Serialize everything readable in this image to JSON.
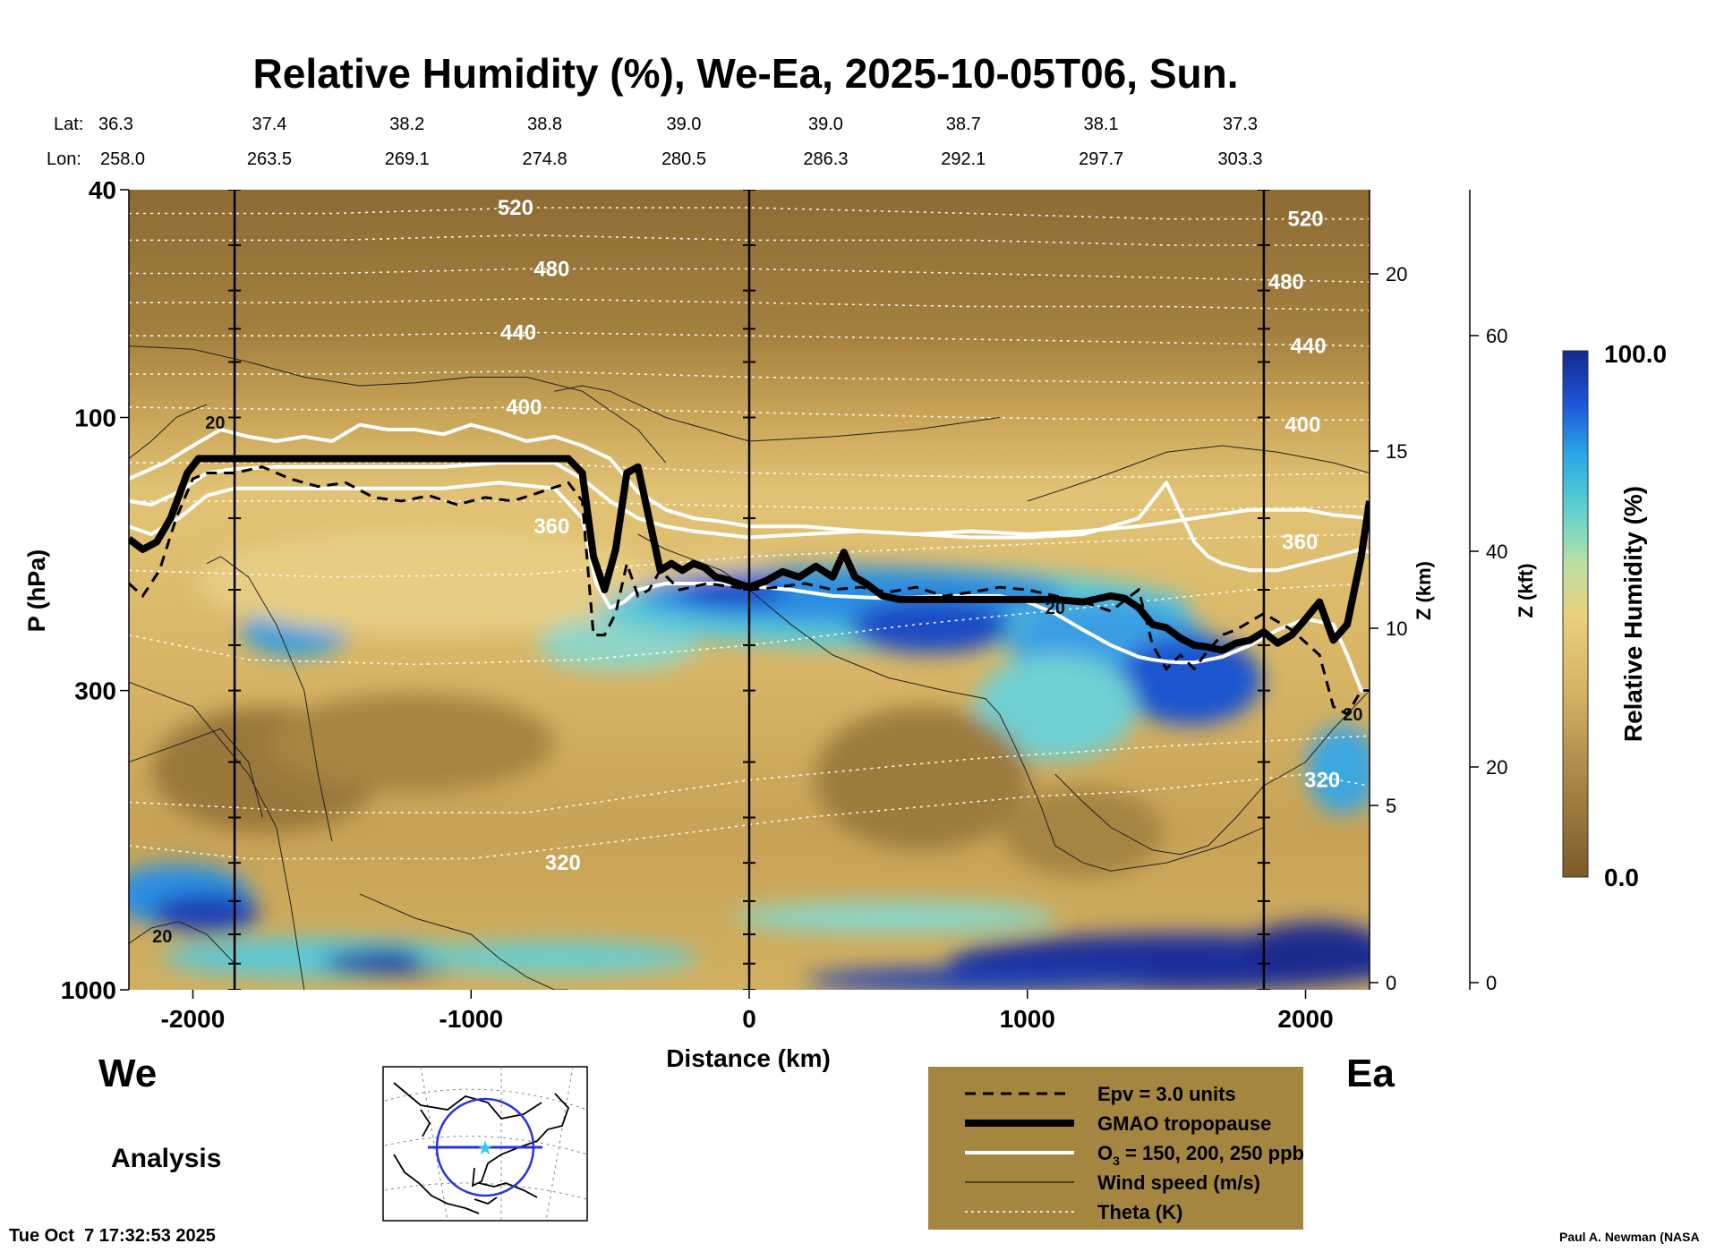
{
  "chart_data": {
    "type": "heatmap",
    "title": "Relative Humidity (%), We-Ea, 2025-10-05T06, Sun.",
    "xlabel": "Distance (km)",
    "ylabel": "P (hPa)",
    "y2label": "Z (km)",
    "y3label": "Z (kft)",
    "colorbar_label": "Relative Humidity (%)",
    "colorbar_max_label": "100.0",
    "colorbar_min_label": "0.0",
    "colorbar_range": [
      0,
      100
    ],
    "colors": {
      "dry": "#8a6a30",
      "mid_dry": "#c9a657",
      "neutral": "#e8c87a",
      "moist": "#8fd6c9",
      "wet": "#2b9be0",
      "saturated": "#1a2b9c",
      "legend_bg": "#a58641"
    },
    "xlim": [
      -2230,
      2230
    ],
    "ylim_hpa": [
      1000,
      40
    ],
    "x_ticks": [
      {
        "value": -2000,
        "label": "-2000"
      },
      {
        "value": -1000,
        "label": "-1000"
      },
      {
        "value": 0,
        "label": "0"
      },
      {
        "value": 1000,
        "label": "1000"
      },
      {
        "value": 2000,
        "label": "2000"
      }
    ],
    "p_ticks": [
      {
        "value": 40,
        "label": "40"
      },
      {
        "value": 100,
        "label": "100"
      },
      {
        "value": 300,
        "label": "300"
      },
      {
        "value": 1000,
        "label": "1000"
      }
    ],
    "z_km_ticks": [
      {
        "value": 20,
        "label": "20"
      },
      {
        "value": 15,
        "label": "15"
      },
      {
        "value": 10,
        "label": "10"
      },
      {
        "value": 5,
        "label": "5"
      },
      {
        "value": 0,
        "label": "0"
      }
    ],
    "z_kft_ticks": [
      {
        "value": 60,
        "label": "60"
      },
      {
        "value": 40,
        "label": "40"
      },
      {
        "value": 20,
        "label": "20"
      },
      {
        "value": 0,
        "label": "0"
      }
    ],
    "lat_label": "Lat:",
    "lon_label": "Lon:",
    "latlon": [
      {
        "x": -2230,
        "lat": "36.3",
        "lon": "258.0"
      },
      {
        "x": -1725,
        "lat": "37.4",
        "lon": "263.5"
      },
      {
        "x": -1230,
        "lat": "38.2",
        "lon": "269.1"
      },
      {
        "x": -735,
        "lat": "38.8",
        "lon": "274.8"
      },
      {
        "x": -235,
        "lat": "39.0",
        "lon": "280.5"
      },
      {
        "x": 275,
        "lat": "39.0",
        "lon": "286.3"
      },
      {
        "x": 770,
        "lat": "38.7",
        "lon": "292.1"
      },
      {
        "x": 1265,
        "lat": "38.1",
        "lon": "297.7"
      },
      {
        "x": 1765,
        "lat": "37.3",
        "lon": "303.3"
      }
    ],
    "vertical_markers_km": [
      -1850,
      0,
      1850
    ],
    "theta_labels": [
      {
        "text": "520",
        "x": -840,
        "p": 43
      },
      {
        "text": "480",
        "x": -710,
        "p": 55
      },
      {
        "text": "440",
        "x": -830,
        "p": 71
      },
      {
        "text": "400",
        "x": -810,
        "p": 96
      },
      {
        "text": "360",
        "x": -710,
        "p": 155
      },
      {
        "text": "320",
        "x": -670,
        "p": 600
      },
      {
        "text": "520",
        "x": 2000,
        "p": 45
      },
      {
        "text": "480",
        "x": 1930,
        "p": 58
      },
      {
        "text": "440",
        "x": 2010,
        "p": 75
      },
      {
        "text": "400",
        "x": 1990,
        "p": 103
      },
      {
        "text": "360",
        "x": 1980,
        "p": 165
      },
      {
        "text": "320",
        "x": 2060,
        "p": 430
      }
    ],
    "wind_labels": [
      {
        "text": "20",
        "x": -1920,
        "p": 102
      },
      {
        "text": "20",
        "x": -2110,
        "p": 805
      },
      {
        "text": "20",
        "x": 1100,
        "p": 215
      },
      {
        "text": "20",
        "x": 2170,
        "p": 330
      }
    ],
    "tropopause": {
      "x": [
        -2230,
        -2180,
        -2130,
        -2080,
        -2020,
        -1980,
        -1850,
        -1500,
        -1000,
        -650,
        -600,
        -560,
        -520,
        -480,
        -440,
        -400,
        -360,
        -320,
        -280,
        -240,
        -200,
        -160,
        -120,
        -80,
        -40,
        0,
        60,
        120,
        180,
        240,
        300,
        340,
        380,
        420,
        480,
        540,
        600,
        700,
        800,
        900,
        1000,
        1100,
        1200,
        1300,
        1350,
        1400,
        1450,
        1500,
        1550,
        1600,
        1650,
        1700,
        1750,
        1800,
        1850,
        1900,
        1950,
        2000,
        2050,
        2100,
        2150,
        2200,
        2230
      ],
      "p": [
        163,
        170,
        165,
        150,
        125,
        118,
        118,
        118,
        118,
        118,
        125,
        175,
        200,
        170,
        125,
        122,
        150,
        185,
        180,
        185,
        180,
        183,
        190,
        192,
        195,
        198,
        193,
        186,
        190,
        182,
        190,
        172,
        190,
        195,
        205,
        208,
        208,
        208,
        208,
        208,
        208,
        208,
        210,
        205,
        207,
        215,
        230,
        233,
        243,
        250,
        252,
        255,
        248,
        245,
        237,
        248,
        240,
        225,
        210,
        245,
        230,
        175,
        140
      ]
    },
    "epv": {
      "x": [
        -2230,
        -2180,
        -2120,
        -2060,
        -2000,
        -1950,
        -1850,
        -1750,
        -1650,
        -1550,
        -1450,
        -1350,
        -1250,
        -1150,
        -1050,
        -950,
        -850,
        -750,
        -650,
        -600,
        -560,
        -520,
        -480,
        -440,
        -400,
        -360,
        -320,
        -250,
        -150,
        -50,
        0,
        100,
        200,
        300,
        400,
        500,
        600,
        700,
        800,
        900,
        1000,
        1100,
        1200,
        1300,
        1400,
        1450,
        1500,
        1550,
        1600,
        1650,
        1700,
        1750,
        1850,
        1950,
        2050,
        2100,
        2150,
        2200,
        2230
      ],
      "p": [
        195,
        205,
        185,
        150,
        128,
        125,
        125,
        122,
        128,
        132,
        130,
        138,
        140,
        137,
        142,
        138,
        140,
        135,
        130,
        140,
        240,
        240,
        220,
        180,
        205,
        200,
        185,
        200,
        195,
        198,
        200,
        198,
        195,
        200,
        198,
        202,
        198,
        205,
        202,
        198,
        200,
        205,
        210,
        218,
        200,
        250,
        275,
        260,
        275,
        255,
        240,
        235,
        220,
        235,
        260,
        320,
        330,
        300,
        300
      ]
    },
    "ozone_curves": [
      {
        "name": "O3 150",
        "x": [
          -2230,
          -2150,
          -2050,
          -1950,
          -1850,
          -1700,
          -1500,
          -1300,
          -1100,
          -900,
          -700,
          -600,
          -550,
          -500,
          -450,
          -400,
          -300,
          -200,
          -100,
          0,
          150,
          300,
          500,
          700,
          900,
          1000,
          1100,
          1200,
          1300,
          1400,
          1450,
          1500,
          1550,
          1600,
          1650,
          1700,
          1800,
          1900,
          2000,
          2100,
          2150,
          2200,
          2230
        ],
        "p": [
          155,
          160,
          150,
          137,
          133,
          133,
          133,
          133,
          133,
          130,
          133,
          150,
          195,
          215,
          210,
          200,
          195,
          195,
          195,
          197,
          200,
          205,
          207,
          205,
          205,
          210,
          220,
          235,
          250,
          262,
          265,
          267,
          268,
          268,
          265,
          262,
          250,
          235,
          225,
          230,
          260,
          300,
          300
        ]
      },
      {
        "name": "O3 200",
        "x": [
          -2230,
          -2150,
          -2050,
          -1950,
          -1850,
          -1700,
          -1500,
          -1300,
          -1100,
          -900,
          -700,
          -600,
          -500,
          -400,
          -300,
          -200,
          -100,
          0,
          200,
          400,
          600,
          800,
          1000,
          1200,
          1300,
          1400,
          1500,
          1600,
          1650,
          1700,
          1800,
          1900,
          2000,
          2100,
          2200,
          2230
        ],
        "p": [
          140,
          142,
          135,
          125,
          123,
          122,
          122,
          122,
          122,
          120,
          120,
          128,
          140,
          150,
          155,
          158,
          160,
          162,
          160,
          158,
          160,
          162,
          162,
          160,
          155,
          150,
          130,
          165,
          175,
          180,
          185,
          185,
          180,
          175,
          170,
          172
        ]
      },
      {
        "name": "O3 250",
        "x": [
          -2230,
          -2100,
          -2000,
          -1900,
          -1800,
          -1700,
          -1600,
          -1500,
          -1400,
          -1300,
          -1200,
          -1100,
          -1000,
          -900,
          -800,
          -700,
          -600,
          -500,
          -400,
          -300,
          -200,
          -100,
          0,
          200,
          400,
          600,
          800,
          1000,
          1200,
          1400,
          1600,
          1800,
          2000,
          2100,
          2230
        ],
        "p": [
          128,
          120,
          112,
          105,
          108,
          110,
          108,
          110,
          103,
          105,
          105,
          107,
          103,
          106,
          110,
          108,
          112,
          118,
          135,
          145,
          150,
          152,
          155,
          155,
          158,
          160,
          158,
          160,
          158,
          155,
          150,
          145,
          145,
          148,
          150
        ]
      }
    ],
    "theta_levels": [
      {
        "theta": 320,
        "x": [
          -2230,
          -1800,
          -1400,
          -1000,
          -600,
          -200,
          200,
          600,
          1000,
          1400,
          1800,
          2000,
          2230
        ],
        "p": [
          560,
          590,
          590,
          590,
          560,
          530,
          500,
          480,
          460,
          450,
          430,
          420,
          440
        ]
      },
      {
        "theta": 330,
        "x": [
          -2230,
          -1500,
          -800,
          0,
          800,
          1500,
          2230
        ],
        "p": [
          470,
          490,
          490,
          430,
          395,
          375,
          360
        ]
      },
      {
        "theta": 340,
        "x": [
          -2230,
          -1800,
          -1200,
          -600,
          0,
          600,
          1200,
          1800,
          2230
        ],
        "p": [
          240,
          265,
          270,
          265,
          250,
          230,
          215,
          200,
          195
        ]
      },
      {
        "theta": 350,
        "x": [
          -2230,
          -1500,
          -800,
          0,
          800,
          1500,
          2230
        ],
        "p": [
          185,
          190,
          188,
          175,
          168,
          163,
          160
        ]
      },
      {
        "theta": 360,
        "x": [
          -2230,
          -1500,
          -800,
          0,
          800,
          1500,
          2230
        ],
        "p": [
          140,
          140,
          140,
          143,
          145,
          145,
          143
        ]
      },
      {
        "theta": 380,
        "x": [
          -2230,
          -1500,
          -800,
          0,
          800,
          1500,
          2230
        ],
        "p": [
          120,
          120,
          120,
          125,
          127,
          127,
          125
        ]
      },
      {
        "theta": 400,
        "x": [
          -2230,
          -1500,
          -800,
          0,
          800,
          1500,
          2230
        ],
        "p": [
          96,
          97,
          96,
          98,
          100,
          101,
          101
        ]
      },
      {
        "theta": 420,
        "x": [
          -2230,
          -1500,
          -800,
          0,
          800,
          1500,
          2230
        ],
        "p": [
          84,
          84,
          83,
          85,
          86,
          87,
          87
        ]
      },
      {
        "theta": 440,
        "x": [
          -2230,
          -1500,
          -800,
          0,
          800,
          1500,
          2230
        ],
        "p": [
          72,
          72,
          71,
          72,
          73,
          74,
          75
        ]
      },
      {
        "theta": 460,
        "x": [
          -2230,
          -1500,
          -800,
          0,
          800,
          1500,
          2230
        ],
        "p": [
          63,
          63,
          62,
          63,
          64,
          64,
          65
        ]
      },
      {
        "theta": 480,
        "x": [
          -2230,
          -1500,
          -800,
          0,
          800,
          1500,
          2230
        ],
        "p": [
          56,
          56,
          55,
          55,
          56,
          57,
          58
        ]
      },
      {
        "theta": 500,
        "x": [
          -2230,
          -1500,
          -800,
          0,
          800,
          1500,
          2230
        ],
        "p": [
          49,
          49,
          48,
          49,
          49,
          50,
          50
        ]
      },
      {
        "theta": 520,
        "x": [
          -2230,
          -1500,
          -800,
          0,
          800,
          1500,
          2230
        ],
        "p": [
          44,
          44,
          43,
          43,
          44,
          45,
          45
        ]
      }
    ],
    "wind_contours": [
      {
        "x": [
          -2230,
          -2000,
          -1800,
          -1600,
          -1400,
          -1200,
          -1000,
          -800,
          -600,
          -400,
          -300
        ],
        "p": [
          75,
          76,
          80,
          85,
          88,
          87,
          85,
          85,
          90,
          105,
          120
        ]
      },
      {
        "x": [
          -2230,
          -2150,
          -2060,
          -2000,
          -1950
        ],
        "p": [
          118,
          110,
          100,
          97,
          95
        ]
      },
      {
        "x": [
          -1950,
          -1900,
          -1800,
          -1700,
          -1600,
          -1550,
          -1500
        ],
        "p": [
          180,
          175,
          190,
          230,
          300,
          420,
          550
        ]
      },
      {
        "x": [
          -2230,
          -2000,
          -1800,
          -1700,
          -1650,
          -1600
        ],
        "p": [
          290,
          320,
          420,
          520,
          700,
          1000
        ]
      },
      {
        "x": [
          -2230,
          -2100,
          -1900,
          -1800,
          -1750
        ],
        "p": [
          400,
          380,
          350,
          400,
          500
        ]
      },
      {
        "x": [
          -2230,
          -2150,
          -2050,
          -1950,
          -1850
        ],
        "p": [
          830,
          780,
          760,
          800,
          900
        ]
      },
      {
        "x": [
          -1400,
          -1200,
          -1000,
          -900,
          -800,
          -700,
          -650
        ],
        "p": [
          680,
          750,
          800,
          880,
          950,
          1000,
          1000
        ]
      },
      {
        "x": [
          -400,
          -300,
          -100,
          0,
          150,
          300,
          500,
          700,
          850,
          900,
          950,
          1000,
          1050,
          1100,
          1200,
          1300,
          1500,
          1700,
          1850
        ],
        "p": [
          160,
          170,
          185,
          200,
          230,
          260,
          285,
          300,
          310,
          330,
          370,
          420,
          480,
          560,
          600,
          620,
          600,
          560,
          520
        ]
      },
      {
        "x": [
          1000,
          1100,
          1200,
          1300,
          1500,
          1700,
          1900,
          2100,
          2230
        ],
        "p": [
          140,
          135,
          130,
          125,
          115,
          112,
          115,
          120,
          125
        ]
      },
      {
        "x": [
          -700,
          -600,
          -500,
          -300,
          0,
          300,
          600,
          900
        ],
        "p": [
          90,
          88,
          90,
          100,
          110,
          108,
          105,
          100
        ]
      },
      {
        "x": [
          1100,
          1200,
          1300,
          1450,
          1550,
          1650,
          1750,
          1850,
          2000,
          2100,
          2230
        ],
        "p": [
          420,
          470,
          520,
          570,
          580,
          560,
          500,
          440,
          400,
          350,
          300
        ]
      }
    ],
    "legend": [
      {
        "key": "epv",
        "label": "Epv = 3.0 units"
      },
      {
        "key": "trop",
        "label": "GMAO tropopause"
      },
      {
        "key": "o3",
        "label": "O",
        "sub": "3",
        "rest": " = 150, 200, 250 ppb"
      },
      {
        "key": "wind",
        "label": "Wind speed (m/s)"
      },
      {
        "key": "theta",
        "label": "Theta (K)"
      }
    ],
    "left_label": "We",
    "right_label": "Ea",
    "analysis_label": "Analysis",
    "timestamp": "Tue Oct  7 17:32:53 2025",
    "credit": "Paul A. Newman (NASA"
  }
}
